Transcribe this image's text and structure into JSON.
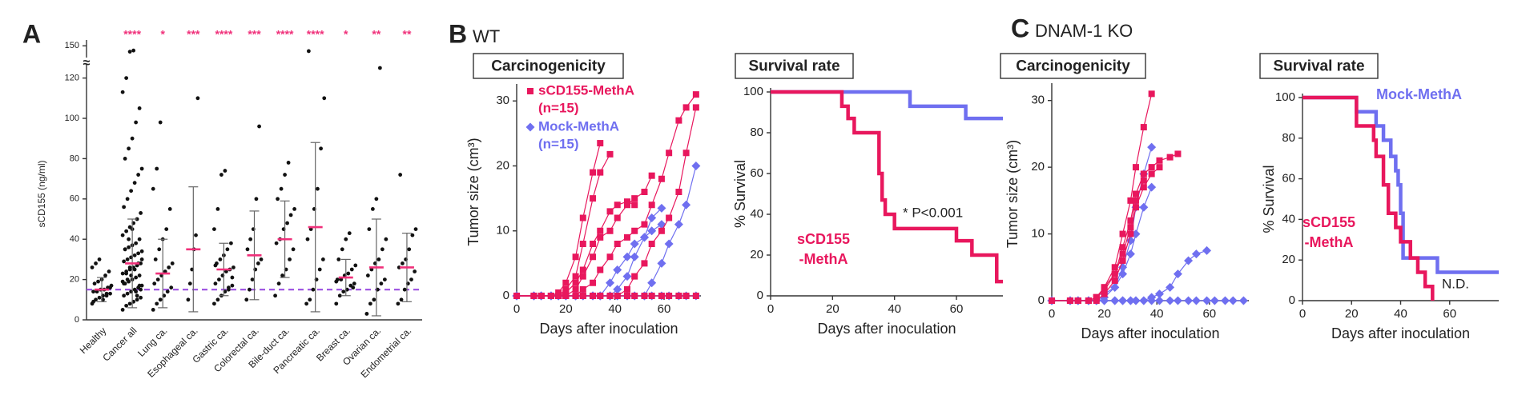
{
  "chart_data": [
    {
      "type": "dotplot",
      "panel": "A",
      "ylabel": "sCD155 (ng/ml)",
      "categories": [
        "Healthy",
        "Cancer all",
        "Lung ca.",
        "Esophageal ca.",
        "Gastric ca.",
        "Colorectal ca.",
        "Bile-duct ca.",
        "Pancreatic ca.",
        "Breast ca.",
        "Ovarian ca.",
        "Endometrial ca."
      ],
      "values": [
        [
          8,
          10,
          11,
          12,
          12,
          13,
          14,
          14,
          15,
          15,
          16,
          17,
          18,
          19,
          20,
          22,
          24,
          26,
          28,
          30,
          10,
          13,
          16,
          9
        ],
        [
          5,
          7,
          8,
          9,
          10,
          11,
          12,
          13,
          14,
          15,
          16,
          17,
          18,
          19,
          20,
          21,
          22,
          23,
          24,
          25,
          26,
          27,
          28,
          29,
          30,
          31,
          32,
          33,
          34,
          35,
          36,
          37,
          38,
          40,
          42,
          44,
          46,
          48,
          50,
          53,
          56,
          60,
          64,
          68,
          72,
          75,
          80,
          85,
          90,
          98,
          105,
          113,
          120,
          140,
          142,
          12,
          15,
          18,
          20,
          22,
          25,
          28,
          30,
          35,
          40,
          45,
          14,
          17,
          19,
          23,
          26
        ],
        [
          5,
          8,
          10,
          12,
          14,
          16,
          18,
          20,
          22,
          24,
          26,
          28,
          30,
          35,
          40,
          45,
          55,
          65,
          75,
          98
        ],
        [
          10,
          18,
          25,
          35,
          42,
          110
        ],
        [
          8,
          10,
          12,
          14,
          15,
          17,
          18,
          20,
          22,
          24,
          25,
          26,
          28,
          30,
          32,
          35,
          38,
          45,
          55,
          72,
          74,
          16,
          21,
          27
        ],
        [
          10,
          15,
          20,
          25,
          28,
          30,
          35,
          40,
          45,
          60,
          96
        ],
        [
          12,
          18,
          22,
          25,
          30,
          35,
          38,
          40,
          45,
          48,
          52,
          55,
          60,
          65,
          72,
          78
        ],
        [
          8,
          10,
          15,
          20,
          25,
          30,
          40,
          45,
          55,
          65,
          85,
          110,
          141
        ],
        [
          8,
          12,
          14,
          15,
          17,
          18,
          20,
          20,
          22,
          23,
          25,
          27,
          30,
          35,
          40,
          43,
          16,
          19
        ],
        [
          3,
          8,
          10,
          15,
          18,
          20,
          22,
          25,
          28,
          30,
          35,
          40,
          45,
          55,
          60,
          125
        ],
        [
          8,
          10,
          15,
          18,
          20,
          24,
          26,
          28,
          30,
          35,
          42,
          45,
          72
        ]
      ],
      "means": [
        15,
        28,
        23,
        35,
        25,
        32,
        40,
        46,
        21,
        26,
        26
      ],
      "sd": [
        6,
        22,
        17,
        31,
        13,
        22,
        19,
        42,
        9,
        24,
        17
      ],
      "stars": [
        null,
        "****",
        "*",
        "***",
        "****",
        "***",
        "****",
        "****",
        "*",
        "**",
        "**"
      ],
      "star_color": "#f0307a",
      "mean_color": "#f0307a",
      "point_color": "#111",
      "reference": 15,
      "reference_color": "#9b4fe0",
      "ylim": [
        0,
        125
      ],
      "yticks": [
        0,
        20,
        40,
        60,
        80,
        100,
        120
      ],
      "upper_ylim": [
        130,
        160
      ],
      "upper_yticks": [
        150
      ],
      "break_mark": "≈"
    },
    {
      "type": "growth",
      "panel": "B",
      "panel_title": "WT",
      "title": "Carcinogenicity",
      "xlabel": "Days after inoculation",
      "ylabel": "Tumor size (cm³)",
      "x": [
        0,
        7,
        10,
        14,
        17,
        20,
        24,
        27,
        31,
        34,
        38,
        41,
        45,
        48,
        52,
        55,
        59,
        62,
        66,
        69,
        73
      ],
      "xlim": [
        0,
        75
      ],
      "xticks": [
        0,
        20,
        40,
        60
      ],
      "ylim": [
        0,
        32
      ],
      "yticks": [
        0,
        10,
        20,
        30
      ],
      "series": [
        {
          "name": "sCD155-MethA",
          "note": "(n=15)",
          "color": "#e8175d",
          "marker": "square",
          "curves": [
            [
              0,
              0,
              0,
              0,
              0.5,
              2,
              6,
              12,
              19,
              23.5,
              null,
              null,
              null,
              null,
              null,
              null,
              null,
              null,
              null,
              null,
              null
            ],
            [
              0,
              0,
              0,
              0,
              0,
              1,
              3,
              8,
              15,
              19,
              21.8,
              null,
              null,
              null,
              null,
              null,
              null,
              null,
              null,
              null,
              null
            ],
            [
              0,
              0,
              0,
              0,
              0,
              0.5,
              2,
              4,
              8,
              10,
              13,
              14,
              14.5,
              14,
              null,
              null,
              null,
              null,
              null,
              null,
              null
            ],
            [
              0,
              0,
              0,
              0,
              0,
              0,
              1,
              3,
              6,
              9,
              10,
              12,
              14,
              15,
              16,
              18.5,
              null,
              null,
              null,
              null,
              null
            ],
            [
              0,
              0,
              0,
              0,
              0,
              0,
              0,
              1,
              2,
              4,
              6,
              8,
              9,
              10,
              11,
              14,
              18,
              22,
              27,
              29,
              31
            ],
            [
              0,
              0,
              0,
              0,
              0,
              0,
              0,
              0,
              0,
              0,
              0,
              0,
              1,
              3,
              5,
              8,
              10,
              12,
              16,
              22,
              29
            ],
            [
              0,
              0,
              0,
              0,
              0,
              0,
              0,
              0,
              0,
              0,
              0,
              0,
              0,
              0,
              0,
              0,
              0,
              0,
              0,
              0,
              0
            ]
          ]
        },
        {
          "name": "Mock-MethA",
          "note": "(n=15)",
          "color": "#6f6ff0",
          "marker": "diamond",
          "curves": [
            [
              0,
              0,
              0,
              0,
              0,
              0,
              0,
              0,
              0,
              0,
              0,
              1,
              3,
              6,
              9,
              12,
              13.5,
              null,
              null,
              null,
              null
            ],
            [
              0,
              0,
              0,
              0,
              0,
              0,
              0,
              0,
              0,
              0,
              0,
              0,
              0,
              0,
              0,
              2,
              5,
              8,
              11,
              14,
              20
            ],
            [
              0,
              0,
              0,
              0,
              0,
              0,
              0,
              0,
              0,
              0,
              2,
              4,
              6,
              8,
              9,
              10,
              11,
              null,
              null,
              null,
              null
            ],
            [
              0,
              0,
              0,
              0,
              0,
              0,
              0,
              0,
              0,
              0,
              0,
              0,
              0,
              0,
              0,
              0,
              0,
              0,
              0,
              0,
              0
            ]
          ]
        }
      ]
    },
    {
      "type": "step",
      "title": "Survival rate",
      "xlabel": "Days after inoculation",
      "ylabel": "% Survival",
      "xlim": [
        0,
        75
      ],
      "xticks": [
        0,
        20,
        40,
        60
      ],
      "ylim": [
        0,
        100
      ],
      "yticks": [
        0,
        20,
        40,
        60,
        80,
        100
      ],
      "annotation": "* P<0.001",
      "series": [
        {
          "color": "#6f6ff0",
          "extend": true,
          "x": [
            0,
            45,
            63
          ],
          "values": [
            100,
            93,
            87
          ]
        },
        {
          "name_lines": [
            "sCD155",
            "-MethA"
          ],
          "color": "#e8175d",
          "extend": true,
          "x": [
            0,
            23,
            25,
            27,
            35,
            36,
            37,
            40,
            60,
            65,
            73
          ],
          "values": [
            100,
            93,
            87,
            80,
            60,
            47,
            40,
            33,
            27,
            20,
            7
          ]
        }
      ]
    },
    {
      "type": "growth",
      "panel": "C",
      "panel_title": "DNAM-1 KO",
      "title": "Carcinogenicity",
      "xlabel": "Days after inoculation",
      "ylabel": "Tumor size (cm³)",
      "x": [
        0,
        7,
        10,
        14,
        17,
        20,
        24,
        27,
        30,
        32,
        35,
        38,
        41,
        45,
        48,
        52,
        55,
        59,
        62,
        66,
        69,
        73
      ],
      "xlim": [
        0,
        75
      ],
      "xticks": [
        0,
        20,
        40,
        60
      ],
      "ylim": [
        0,
        32
      ],
      "yticks": [
        0,
        10,
        20,
        30
      ],
      "series": [
        {
          "color": "#e8175d",
          "marker": "square",
          "curves": [
            [
              0,
              0,
              0,
              0,
              0.5,
              2,
              5,
              10,
              15,
              20,
              26,
              31,
              null,
              null,
              null,
              null,
              null,
              null,
              null,
              null,
              null,
              null
            ],
            [
              0,
              0,
              0,
              0,
              0.5,
              1.5,
              4,
              8,
              12,
              16,
              19,
              20,
              21,
              21.5,
              22,
              null,
              null,
              null,
              null,
              null,
              null,
              null
            ],
            [
              0,
              0,
              0,
              0,
              0,
              1,
              3,
              6,
              10,
              14,
              17,
              19,
              20,
              null,
              null,
              null,
              null,
              null,
              null,
              null,
              null,
              null
            ],
            [
              0,
              0,
              0,
              0,
              0.5,
              2,
              4,
              7,
              11,
              15,
              18,
              null,
              null,
              null,
              null,
              null,
              null,
              null,
              null,
              null,
              null,
              null
            ]
          ]
        },
        {
          "color": "#6f6ff0",
          "marker": "diamond",
          "curves": [
            [
              0,
              0,
              0,
              0,
              0,
              1,
              2,
              5,
              9,
              14,
              19,
              23,
              null,
              null,
              null,
              null,
              null,
              null,
              null,
              null,
              null,
              null
            ],
            [
              0,
              0,
              0,
              0,
              0,
              0.5,
              2,
              4,
              7,
              10,
              14,
              17,
              null,
              null,
              null,
              null,
              null,
              null,
              null,
              null,
              null,
              null
            ],
            [
              0,
              0,
              0,
              0,
              0,
              0,
              0,
              0,
              0,
              0,
              0,
              0.5,
              1,
              2,
              4,
              6,
              7,
              7.5,
              null,
              null,
              null,
              null
            ],
            [
              0,
              0,
              0,
              0,
              0,
              0,
              0,
              0,
              0,
              0,
              0,
              0,
              0,
              0,
              0,
              0,
              0,
              0,
              0,
              0,
              0,
              0
            ]
          ]
        }
      ]
    },
    {
      "type": "step",
      "title": "Survival rate",
      "xlabel": "Days after inoculation",
      "ylabel": "% Survival",
      "xlim": [
        0,
        80
      ],
      "xticks": [
        0,
        20,
        40,
        60
      ],
      "ylim": [
        0,
        100
      ],
      "yticks": [
        0,
        20,
        40,
        60,
        80,
        100
      ],
      "annotation": "N.D.",
      "series": [
        {
          "name": "Mock-MethA",
          "color": "#6f6ff0",
          "extend": true,
          "x": [
            0,
            22,
            30,
            33,
            36,
            38,
            39,
            40,
            41,
            55
          ],
          "values": [
            100,
            93,
            86,
            79,
            71,
            64,
            57,
            43,
            21,
            14
          ]
        },
        {
          "name_lines": [
            "sCD155",
            "-MethA"
          ],
          "color": "#e8175d",
          "extend": false,
          "x": [
            0,
            22,
            29,
            30,
            33,
            35,
            38,
            40,
            44,
            47,
            50,
            53
          ],
          "values": [
            100,
            86,
            79,
            71,
            57,
            43,
            36,
            29,
            21,
            14,
            7,
            0
          ]
        }
      ]
    }
  ]
}
